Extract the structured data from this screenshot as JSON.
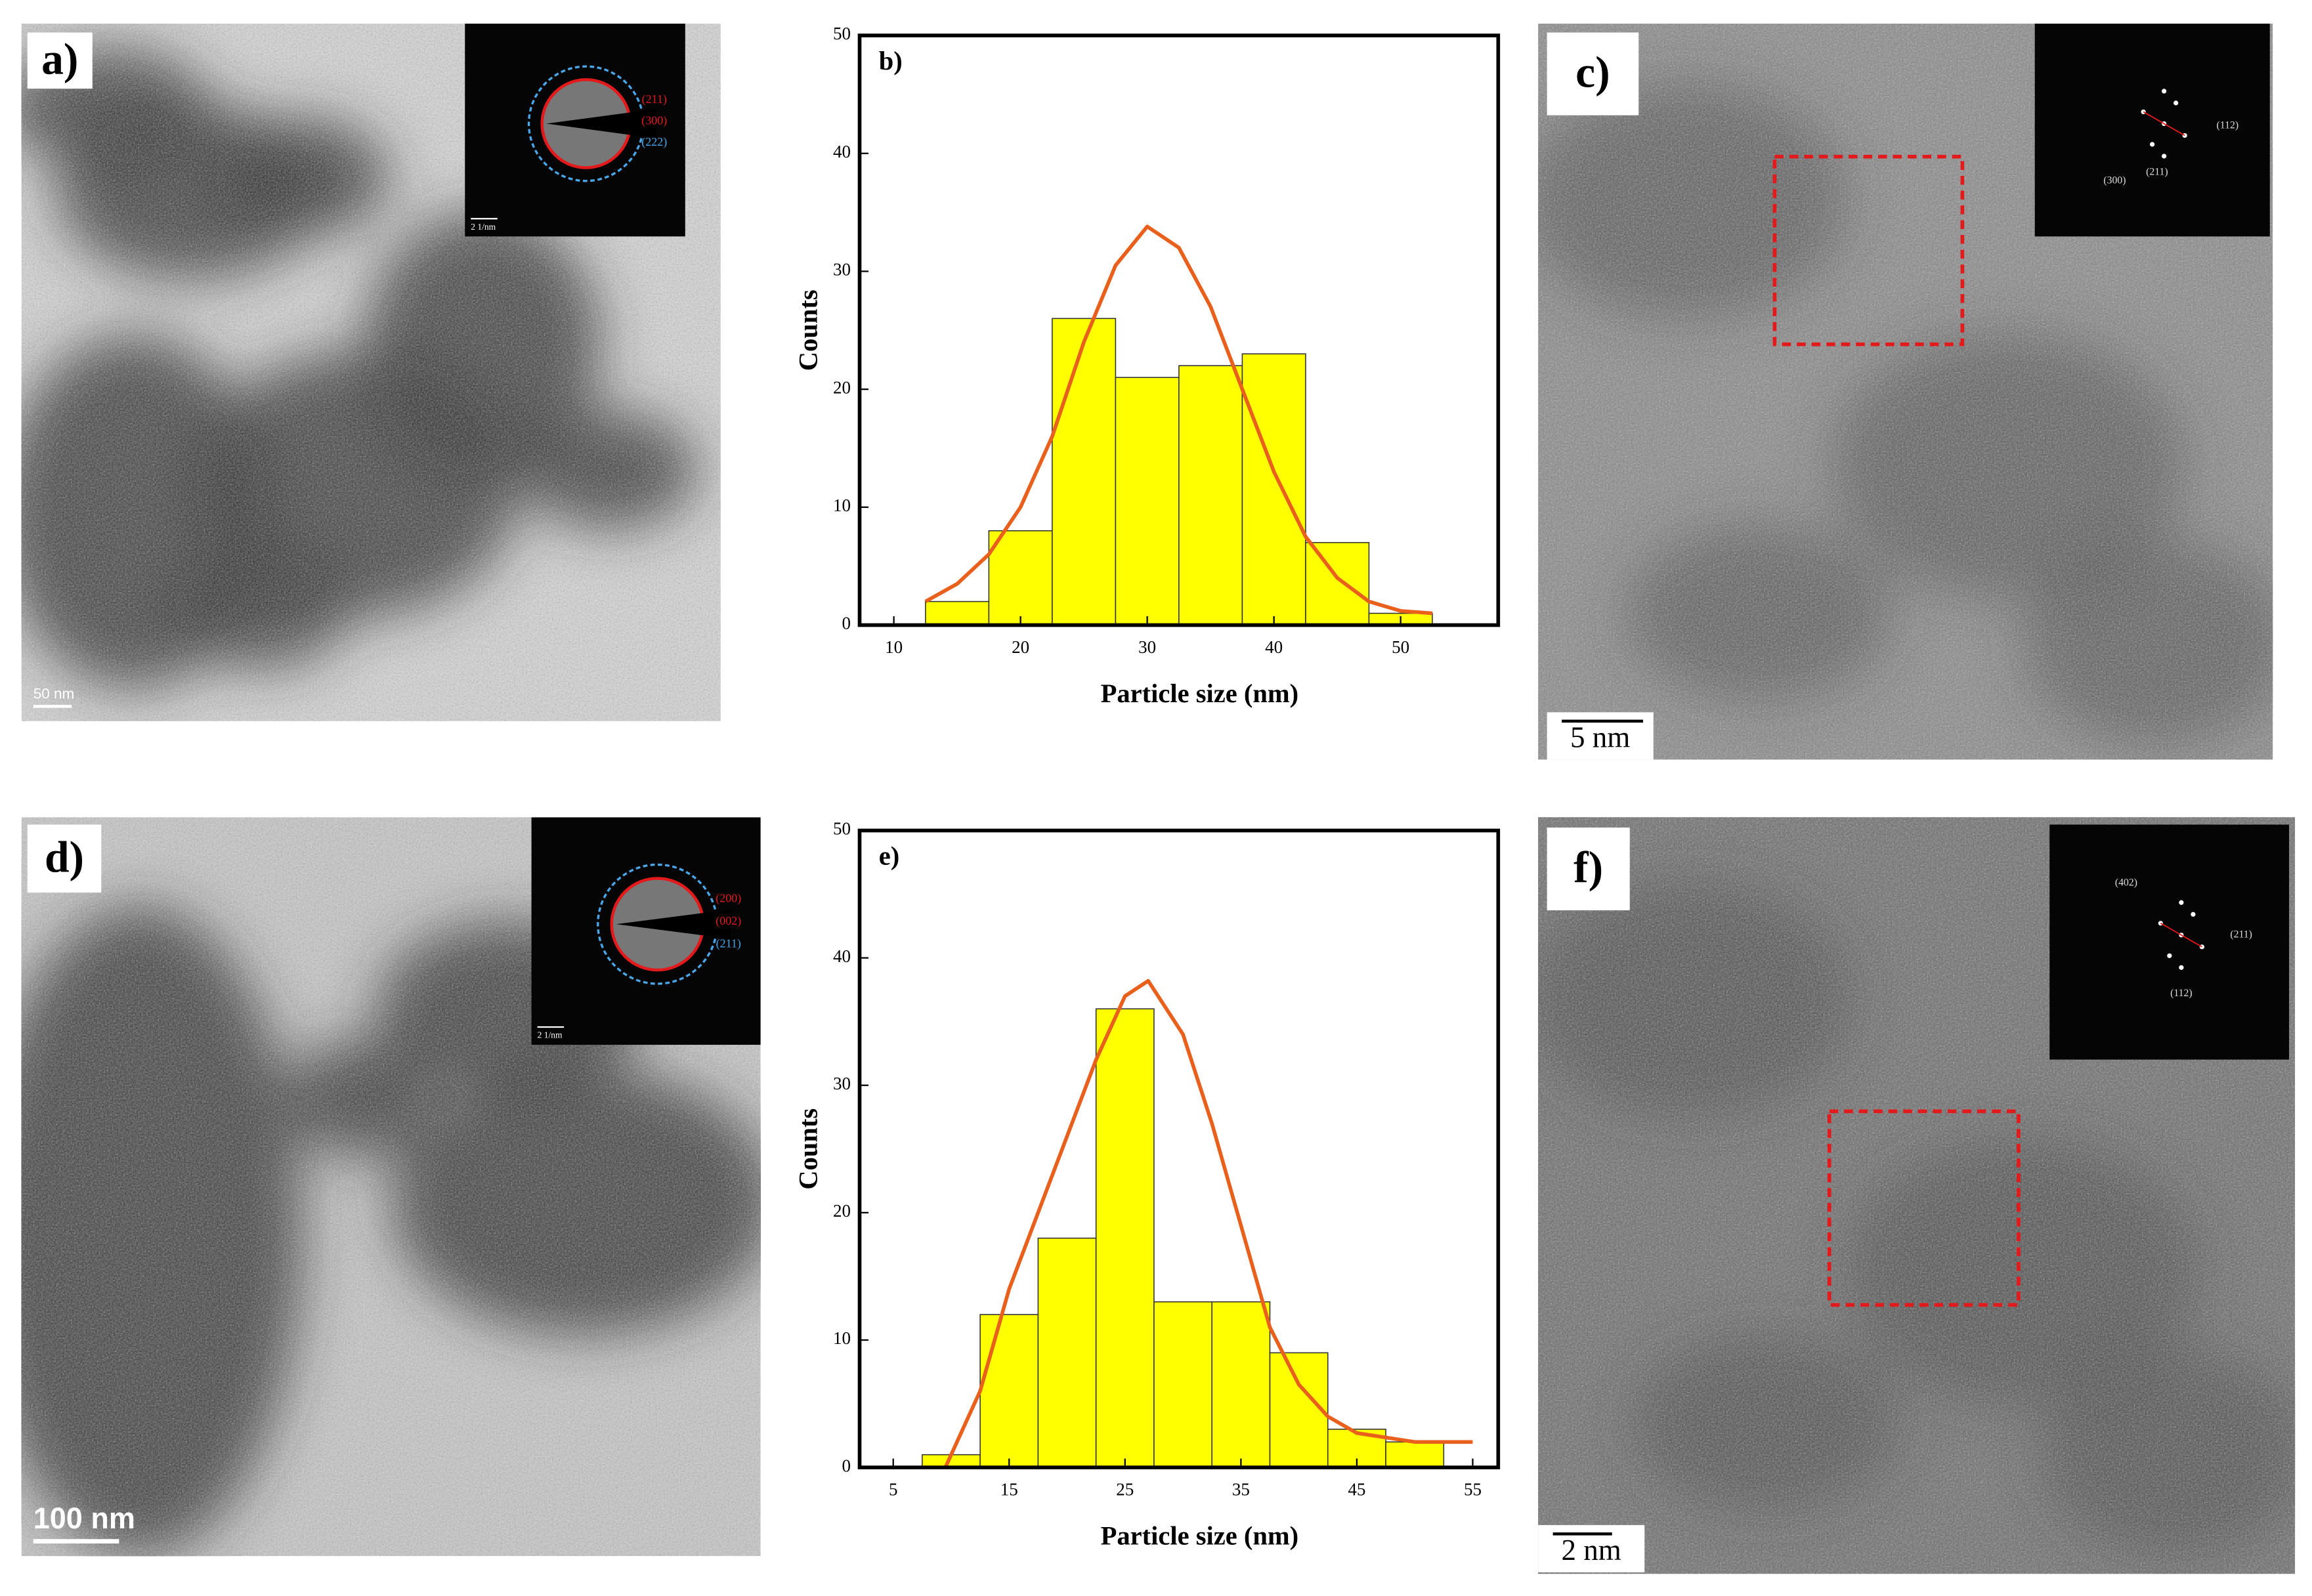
{
  "panels": [
    {
      "label": "a)",
      "scale_bar": "50 nm",
      "inset": {
        "scale_bar": "2 1/nm",
        "rings": [
          "(211)",
          "(300)",
          "(222)"
        ]
      }
    },
    {
      "label": "c)",
      "scale_bar": "5 nm",
      "inset": {
        "spots": [
          "(112)",
          "(211)",
          "(300)"
        ]
      }
    },
    {
      "label": "d)",
      "scale_bar": "100 nm",
      "inset": {
        "scale_bar": "2 1/nm",
        "rings": [
          "(200)",
          "(002)",
          "(211)"
        ]
      }
    },
    {
      "label": "f)",
      "scale_bar": "2 nm",
      "inset": {
        "spots": [
          "(402)",
          "(211)",
          "(112)"
        ]
      }
    }
  ],
  "chart_data": [
    {
      "type": "histogram",
      "panel_label": "b)",
      "x_label": "Particle size (nm)",
      "y_label": "Counts",
      "bins": [
        12.5,
        17.5,
        22.5,
        27.5,
        32.5,
        37.5,
        42.5,
        47.5,
        52.5
      ],
      "values": [
        2,
        8,
        26,
        21,
        22,
        23,
        7,
        1
      ],
      "color": "#ffff00",
      "fit": {
        "color": "#e8601c",
        "x": [
          12.5,
          15,
          17.5,
          20,
          22.5,
          25,
          27.5,
          30,
          32.5,
          35,
          37.5,
          40,
          42.5,
          45,
          47.5,
          50,
          52.5
        ],
        "y": [
          2,
          3.5,
          6,
          10,
          16,
          24,
          30.5,
          33.8,
          32,
          27,
          20,
          13,
          7.5,
          4,
          2,
          1.2,
          1
        ]
      },
      "xlim": [
        7.3,
        57.7
      ],
      "xticks": [
        10,
        20,
        30,
        40,
        50
      ],
      "ylim": [
        0,
        50
      ],
      "yticks": [
        0,
        10,
        20,
        30,
        40,
        50
      ]
    },
    {
      "type": "histogram",
      "panel_label": "e)",
      "x_label": "Particle size (nm)",
      "y_label": "Counts",
      "bins": [
        7.5,
        12.5,
        17.5,
        22.5,
        27.5,
        32.5,
        37.5,
        42.5,
        47.5,
        52.5
      ],
      "values": [
        1,
        12,
        18,
        36,
        13,
        13,
        9,
        3,
        2
      ],
      "color": "#ffff00",
      "fit": {
        "color": "#e8601c",
        "x": [
          9.5,
          12.5,
          15,
          17.5,
          20,
          22.5,
          25,
          27,
          30,
          32.5,
          35,
          37.5,
          40,
          42.5,
          45,
          50,
          55
        ],
        "y": [
          0,
          6,
          14,
          20,
          26,
          32,
          37,
          38.2,
          34,
          27,
          19,
          11,
          6.5,
          4,
          2.7,
          2,
          2
        ]
      },
      "xlim": [
        2.1,
        57.2
      ],
      "xticks": [
        5,
        15,
        25,
        35,
        45,
        55
      ],
      "ylim": [
        0,
        50
      ],
      "yticks": [
        0,
        10,
        20,
        30,
        40,
        50
      ]
    }
  ]
}
